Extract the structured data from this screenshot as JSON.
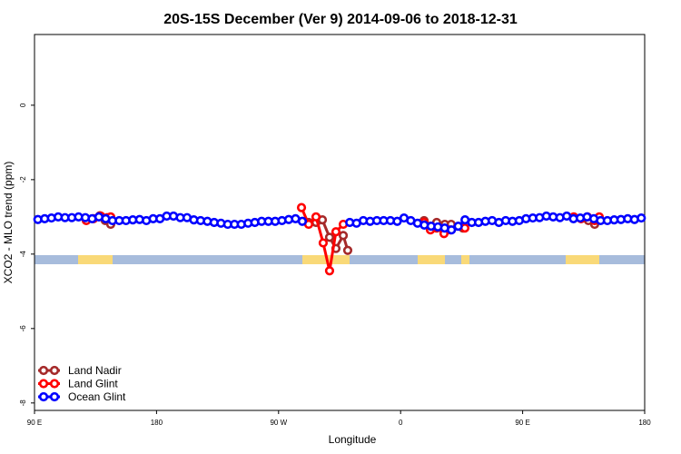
{
  "chart_data": {
    "type": "line",
    "title": "20S-15S December (Ver 9)   2014-09-06 to 2018-12-31",
    "x_label": "Longitude",
    "y_label": "XCO2 - MLO trend (ppm)",
    "xlim": [
      90,
      540
    ],
    "xticks": [
      {
        "value": 90,
        "label": "90 E"
      },
      {
        "value": 180,
        "label": "180"
      },
      {
        "value": 270,
        "label": "90 W"
      },
      {
        "value": 360,
        "label": "0"
      },
      {
        "value": 450,
        "label": "90 E"
      },
      {
        "value": 540,
        "label": "180"
      }
    ],
    "ylim": [
      -8.2,
      1.9
    ],
    "yticks": [
      0,
      -2,
      -4,
      -6,
      -8
    ],
    "legend": "bottom-left",
    "series": [
      {
        "name": "Land Nadir",
        "color": "#a52a2a",
        "x": [
          138.2,
          142.2,
          146.2,
          null,
          292.2,
          297.6,
          302.3,
          307.6,
          312.3,
          317.7,
          321.0,
          null,
          377.3,
          382.0,
          386.6,
          392.6,
          397.3,
          406.0,
          null,
          487.7,
          498.5,
          503.1
        ],
        "values": [
          -2.97,
          -3.1,
          -3.2,
          null,
          -3.15,
          -3.15,
          -3.08,
          -3.55,
          -3.85,
          -3.5,
          -3.9,
          null,
          -3.1,
          -3.25,
          -3.15,
          -3.2,
          -3.2,
          -3.3,
          null,
          -3.02,
          -3.1,
          -3.2
        ]
      },
      {
        "name": "Land Glint",
        "color": "#ff0000",
        "x": [
          128.2,
          133.5,
          138.9,
          143.6,
          146.2,
          null,
          286.9,
          292.2,
          297.6,
          302.9,
          307.6,
          312.3,
          317.7,
          null,
          377.3,
          382.0,
          386.6,
          392.0,
          396.7,
          407.4,
          null,
          487.7,
          493.1,
          497.8,
          503.1,
          506.5
        ],
        "values": [
          -3.1,
          -3.05,
          -2.98,
          -3.02,
          -3.0,
          null,
          -2.75,
          -3.2,
          -3.0,
          -3.7,
          -4.45,
          -3.4,
          -3.2,
          null,
          -3.15,
          -3.35,
          -3.3,
          -3.45,
          -3.35,
          -3.3,
          null,
          -3.0,
          -3.05,
          -3.0,
          -3.1,
          -3.0
        ]
      },
      {
        "name": "Ocean Glint",
        "color": "#0000ff",
        "x": [
          92.5,
          97.5,
          102.5,
          107.5,
          112.5,
          117.5,
          122.5,
          127.5,
          132.5,
          137.5,
          142.5,
          147.5,
          152.5,
          157.5,
          162.5,
          167.5,
          172.5,
          177.5,
          182.5,
          187.5,
          192.5,
          197.5,
          202.5,
          207.5,
          212.5,
          217.5,
          222.5,
          227.5,
          232.5,
          237.5,
          242.5,
          247.5,
          252.5,
          257.5,
          262.5,
          267.5,
          272.5,
          277.5,
          282.5,
          287.5,
          null,
          null,
          null,
          null,
          null,
          null,
          322.5,
          327.5,
          332.5,
          337.5,
          342.5,
          347.5,
          352.5,
          357.5,
          362.5,
          367.5,
          372.5,
          377.5,
          382.5,
          387.5,
          392.5,
          397.5,
          402.5,
          407.5,
          412.5,
          417.5,
          422.5,
          427.5,
          432.5,
          437.5,
          442.5,
          447.5,
          452.5,
          457.5,
          462.5,
          467.5,
          472.5,
          477.5,
          482.5,
          487.5,
          492.5,
          497.5,
          502.5,
          507.5,
          512.5,
          517.5,
          522.5,
          527.5,
          532.5,
          537.5
        ],
        "values": [
          -3.07,
          -3.05,
          -3.03,
          -3.0,
          -3.02,
          -3.02,
          -3.0,
          -3.02,
          -3.05,
          -3.0,
          -3.05,
          -3.1,
          -3.1,
          -3.1,
          -3.08,
          -3.07,
          -3.1,
          -3.05,
          -3.05,
          -2.98,
          -2.98,
          -3.02,
          -3.02,
          -3.08,
          -3.1,
          -3.12,
          -3.15,
          -3.17,
          -3.2,
          -3.2,
          -3.2,
          -3.17,
          -3.15,
          -3.12,
          -3.12,
          -3.12,
          -3.1,
          -3.07,
          -3.05,
          -3.12,
          null,
          null,
          null,
          null,
          null,
          null,
          -3.15,
          -3.17,
          -3.1,
          -3.12,
          -3.1,
          -3.1,
          -3.1,
          -3.12,
          -3.03,
          -3.1,
          -3.17,
          -3.22,
          -3.25,
          -3.27,
          -3.3,
          -3.35,
          -3.25,
          -3.08,
          -3.15,
          -3.15,
          -3.12,
          -3.1,
          -3.15,
          -3.1,
          -3.12,
          -3.1,
          -3.05,
          -3.03,
          -3.02,
          -2.98,
          -3.0,
          -3.02,
          -2.98,
          -3.05,
          -3.03,
          -3.0,
          -3.05,
          -3.1,
          -3.1,
          -3.08,
          -3.07,
          -3.05,
          -3.07,
          -3.03
        ]
      }
    ]
  }
}
